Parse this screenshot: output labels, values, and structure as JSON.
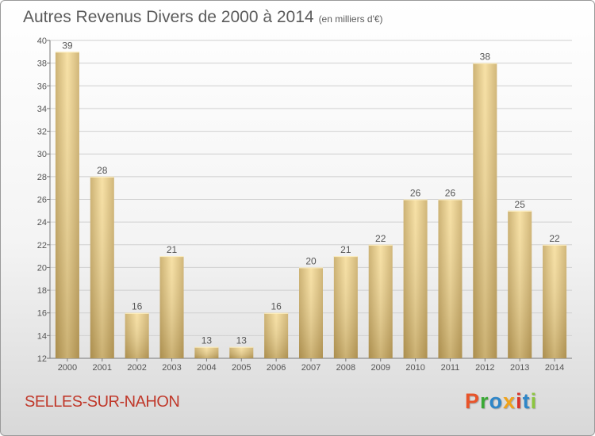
{
  "chart_data": {
    "type": "bar",
    "title": "Autres Revenus Divers de 2000 à 2014",
    "subtitle": "(en milliers d'€)",
    "categories": [
      "2000",
      "2001",
      "2002",
      "2003",
      "2004",
      "2005",
      "2006",
      "2007",
      "2008",
      "2009",
      "2010",
      "2011",
      "2012",
      "2013",
      "2014"
    ],
    "values": [
      39,
      28,
      16,
      21,
      13,
      13,
      16,
      20,
      21,
      22,
      26,
      26,
      38,
      25,
      22
    ],
    "ylim": [
      12,
      40
    ],
    "yticks": [
      12,
      14,
      16,
      18,
      20,
      22,
      24,
      26,
      28,
      30,
      32,
      34,
      36,
      38,
      40
    ],
    "grid": true,
    "bar_color": "#e8cd85",
    "label_color": "#555555"
  },
  "footer": {
    "city": "SELLES-SUR-NAHON",
    "brand": "Proxiti",
    "brand_colors": [
      "#e8542a",
      "#3aa935",
      "#2e86c8",
      "#f0a21a",
      "#d9322a",
      "#2e86c8",
      "#8cc63f"
    ]
  }
}
